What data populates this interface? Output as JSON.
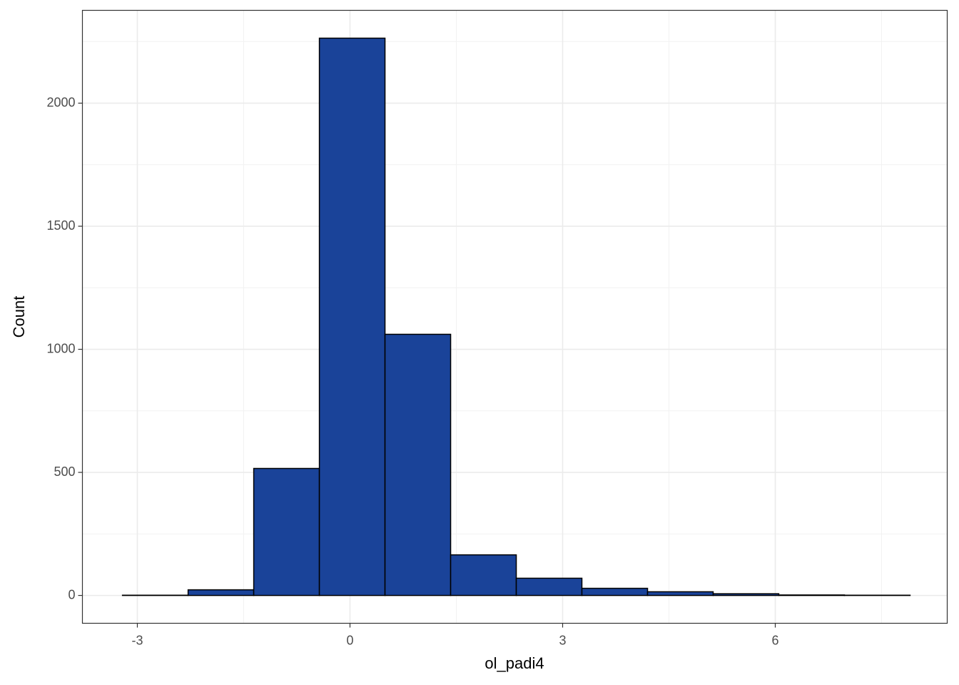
{
  "chart_data": {
    "type": "histogram",
    "x_label": "ol_padi4",
    "y_label": "Count",
    "bins": [
      -3.21,
      -2.284,
      -1.358,
      -0.432,
      0.494,
      1.42,
      2.346,
      3.272,
      4.198,
      5.124,
      6.05,
      6.976,
      7.902
    ],
    "values": [
      1,
      23,
      516,
      2264,
      1061,
      165,
      70,
      29,
      15,
      7,
      2,
      1
    ],
    "color": "#1a4399",
    "edgecolor": "#000000",
    "xlim": [
      -3.775,
      8.426
    ],
    "ylim": [
      -113,
      2377
    ],
    "xticks": [
      -3,
      0,
      3,
      6
    ],
    "yticks": [
      0,
      500,
      1000,
      1500,
      2000
    ],
    "grid": true
  }
}
